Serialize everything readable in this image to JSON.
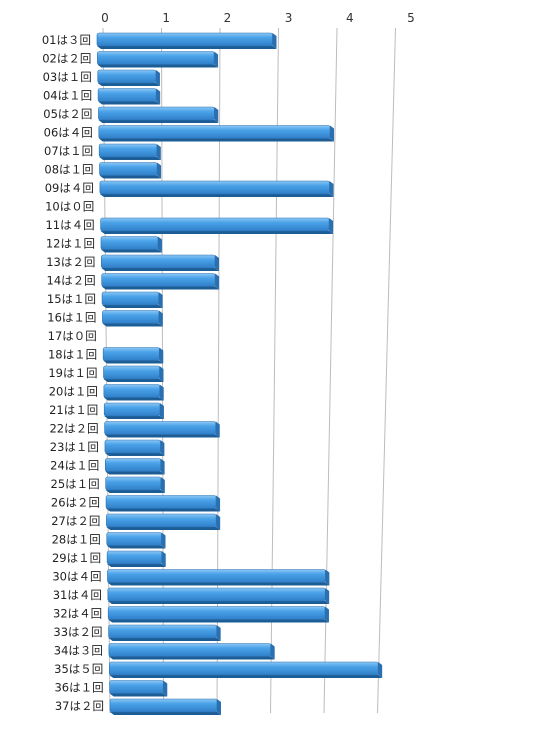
{
  "chart_data": {
    "type": "bar",
    "orientation": "horizontal",
    "style": "3d",
    "title": "",
    "xlabel": "",
    "ylabel": "",
    "xlim": [
      0,
      5
    ],
    "xticks": [
      "0",
      "1",
      "2",
      "3",
      "4",
      "5"
    ],
    "grid": true,
    "legend": "none",
    "bar_color": "#3d95e0",
    "categories": [
      "01は３回",
      "02は２回",
      "03は１回",
      "04は１回",
      "05は２回",
      "06は４回",
      "07は１回",
      "08は１回",
      "09は４回",
      "10は０回",
      "11は４回",
      "12は１回",
      "13は２回",
      "14は２回",
      "15は１回",
      "16は１回",
      "17は０回",
      "18は１回",
      "19は１回",
      "20は１回",
      "21は１回",
      "22は２回",
      "23は１回",
      "24は１回",
      "25は１回",
      "26は２回",
      "27は２回",
      "28は１回",
      "29は１回",
      "30は４回",
      "31は４回",
      "32は４回",
      "33は２回",
      "34は３回",
      "35は５回",
      "36は１回",
      "37は２回"
    ],
    "values": [
      3,
      2,
      1,
      1,
      2,
      4,
      1,
      1,
      4,
      0,
      4,
      1,
      2,
      2,
      1,
      1,
      0,
      1,
      1,
      1,
      1,
      2,
      1,
      1,
      1,
      2,
      2,
      1,
      1,
      4,
      4,
      4,
      2,
      3,
      5,
      1,
      2
    ]
  }
}
